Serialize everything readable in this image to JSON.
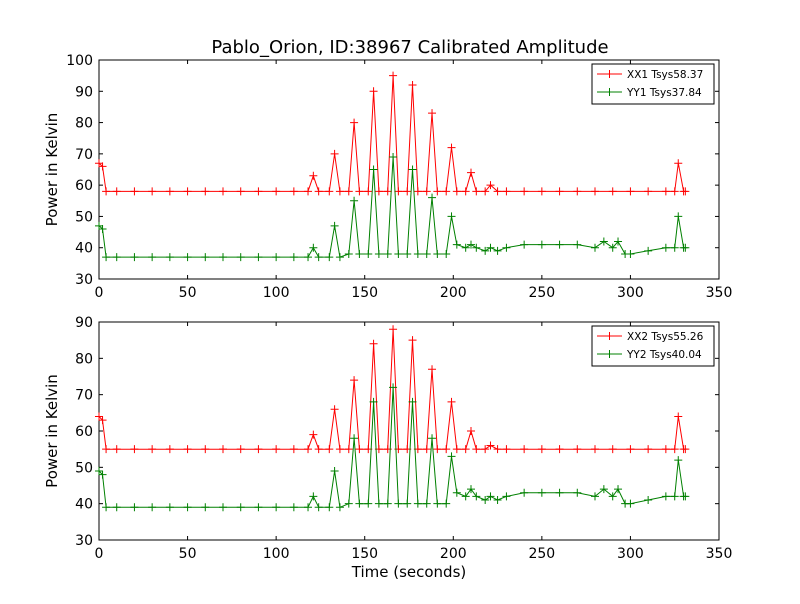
{
  "figure": {
    "title": "Pablo_Orion, ID:38967 Calibrated Amplitude"
  },
  "chart_data": [
    {
      "type": "line",
      "title": "Pablo_Orion, ID:38967 Calibrated Amplitude",
      "xlabel": "",
      "ylabel": "Power in Kelvin",
      "xlim": [
        0,
        350
      ],
      "ylim": [
        30,
        100
      ],
      "xticks": [
        0,
        50,
        100,
        150,
        200,
        250,
        300,
        350
      ],
      "yticks": [
        30,
        40,
        50,
        60,
        70,
        80,
        90,
        100
      ],
      "grid": false,
      "legend_position": "top-right",
      "series": [
        {
          "name": "XX1 Tsys58.37",
          "color": "#ff0000",
          "marker": "+",
          "x": [
            0,
            2,
            4,
            10,
            20,
            30,
            40,
            50,
            60,
            70,
            80,
            90,
            100,
            110,
            118,
            121,
            124,
            130,
            133,
            136,
            141,
            144,
            147,
            152,
            155,
            158,
            163,
            166,
            169,
            174,
            177,
            180,
            185,
            188,
            191,
            196,
            199,
            202,
            207,
            210,
            213,
            218,
            221,
            225,
            230,
            240,
            250,
            260,
            270,
            280,
            290,
            300,
            310,
            320,
            325,
            327,
            330,
            331
          ],
          "y": [
            67,
            66,
            58,
            58,
            58,
            58,
            58,
            58,
            58,
            58,
            58,
            58,
            58,
            58,
            58,
            63,
            58,
            58,
            70,
            58,
            58,
            80,
            58,
            58,
            90,
            58,
            58,
            95,
            58,
            58,
            92,
            58,
            58,
            83,
            58,
            58,
            72,
            58,
            58,
            64,
            58,
            58,
            60,
            58,
            58,
            58,
            58,
            58,
            58,
            58,
            58,
            58,
            58,
            58,
            58,
            67,
            58,
            58
          ]
        },
        {
          "name": "YY1 Tsys37.84",
          "color": "#008000",
          "marker": "+",
          "x": [
            0,
            2,
            4,
            10,
            20,
            30,
            40,
            50,
            60,
            70,
            80,
            90,
            100,
            110,
            118,
            121,
            124,
            130,
            133,
            136,
            141,
            144,
            147,
            152,
            155,
            158,
            163,
            166,
            169,
            174,
            177,
            180,
            185,
            188,
            191,
            196,
            199,
            202,
            207,
            210,
            213,
            218,
            221,
            225,
            230,
            240,
            250,
            260,
            270,
            280,
            285,
            290,
            293,
            297,
            300,
            310,
            320,
            325,
            327,
            330,
            331
          ],
          "y": [
            47,
            46,
            37,
            37,
            37,
            37,
            37,
            37,
            37,
            37,
            37,
            37,
            37,
            37,
            37,
            40,
            37,
            37,
            47,
            37,
            38,
            55,
            38,
            38,
            65,
            38,
            38,
            69,
            38,
            38,
            65,
            38,
            38,
            56,
            38,
            38,
            50,
            41,
            40,
            41,
            40,
            39,
            40,
            39,
            40,
            41,
            41,
            41,
            41,
            40,
            42,
            40,
            42,
            38,
            38,
            39,
            40,
            40,
            50,
            40,
            40
          ]
        }
      ]
    },
    {
      "type": "line",
      "title": "",
      "xlabel": "Time (seconds)",
      "ylabel": "Power in Kelvin",
      "xlim": [
        0,
        350
      ],
      "ylim": [
        30,
        90
      ],
      "xticks": [
        0,
        50,
        100,
        150,
        200,
        250,
        300,
        350
      ],
      "yticks": [
        30,
        40,
        50,
        60,
        70,
        80,
        90
      ],
      "grid": false,
      "legend_position": "top-right",
      "series": [
        {
          "name": "XX2 Tsys55.26",
          "color": "#ff0000",
          "marker": "+",
          "x": [
            0,
            2,
            4,
            10,
            20,
            30,
            40,
            50,
            60,
            70,
            80,
            90,
            100,
            110,
            118,
            121,
            124,
            130,
            133,
            136,
            141,
            144,
            147,
            152,
            155,
            158,
            163,
            166,
            169,
            174,
            177,
            180,
            185,
            188,
            191,
            196,
            199,
            202,
            207,
            210,
            213,
            218,
            221,
            225,
            230,
            240,
            250,
            260,
            270,
            280,
            290,
            300,
            310,
            320,
            325,
            327,
            330,
            331
          ],
          "y": [
            64,
            63,
            55,
            55,
            55,
            55,
            55,
            55,
            55,
            55,
            55,
            55,
            55,
            55,
            55,
            59,
            55,
            55,
            66,
            55,
            55,
            74,
            55,
            55,
            84,
            55,
            55,
            88,
            55,
            55,
            85,
            55,
            55,
            77,
            55,
            55,
            68,
            55,
            55,
            60,
            55,
            55,
            56,
            55,
            55,
            55,
            55,
            55,
            55,
            55,
            55,
            55,
            55,
            55,
            55,
            64,
            55,
            55
          ]
        },
        {
          "name": "YY2 Tsys40.04",
          "color": "#008000",
          "marker": "+",
          "x": [
            0,
            2,
            4,
            10,
            20,
            30,
            40,
            50,
            60,
            70,
            80,
            90,
            100,
            110,
            118,
            121,
            124,
            130,
            133,
            136,
            141,
            144,
            147,
            152,
            155,
            158,
            163,
            166,
            169,
            174,
            177,
            180,
            185,
            188,
            191,
            196,
            199,
            202,
            207,
            210,
            213,
            218,
            221,
            225,
            230,
            240,
            250,
            260,
            270,
            280,
            285,
            290,
            293,
            297,
            300,
            310,
            320,
            325,
            327,
            330,
            331
          ],
          "y": [
            49,
            48,
            39,
            39,
            39,
            39,
            39,
            39,
            39,
            39,
            39,
            39,
            39,
            39,
            39,
            42,
            39,
            39,
            49,
            39,
            40,
            58,
            40,
            40,
            68,
            40,
            40,
            72,
            40,
            40,
            68,
            40,
            40,
            58,
            40,
            40,
            53,
            43,
            42,
            44,
            42,
            41,
            42,
            41,
            42,
            43,
            43,
            43,
            43,
            42,
            44,
            42,
            44,
            40,
            40,
            41,
            42,
            42,
            52,
            42,
            42
          ]
        }
      ]
    }
  ]
}
